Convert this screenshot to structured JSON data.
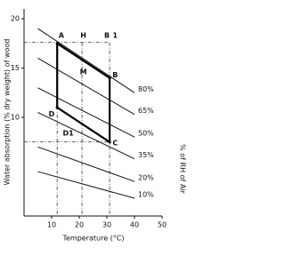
{
  "chart_data": {
    "type": "line",
    "x_label": "Temperature (°C)",
    "y_label": "Water absorption (% dry weight) of wood",
    "y2_label": "% of RH of Air",
    "xlim": [
      0,
      50
    ],
    "xticks": [
      10,
      20,
      30,
      40,
      50
    ],
    "ylim": [
      0,
      21
    ],
    "yticks": [
      10,
      15,
      20
    ],
    "color": "#111111",
    "series": [
      {
        "name": "80%",
        "x": [
          5,
          40
        ],
        "values": [
          19,
          12.5
        ]
      },
      {
        "name": "65%",
        "x": [
          5,
          40
        ],
        "values": [
          16,
          10.3
        ]
      },
      {
        "name": "50%",
        "x": [
          5,
          40
        ],
        "values": [
          13,
          8
        ]
      },
      {
        "name": "35%",
        "x": [
          5,
          40
        ],
        "values": [
          10.5,
          5.8
        ]
      },
      {
        "name": "20%",
        "x": [
          5,
          40
        ],
        "values": [
          7,
          3.5
        ]
      },
      {
        "name": "10%",
        "x": [
          5,
          40
        ],
        "values": [
          4.5,
          1.8
        ]
      }
    ],
    "cycle": {
      "x": [
        12,
        31,
        31,
        12,
        12
      ],
      "values": [
        17.5,
        14,
        7.5,
        11,
        17.5
      ]
    },
    "guides": [
      {
        "x": [
          0,
          31
        ],
        "values": [
          17.6,
          17.6
        ]
      },
      {
        "x": [
          31,
          31
        ],
        "values": [
          17.6,
          0
        ]
      },
      {
        "x": [
          12,
          12
        ],
        "values": [
          17.6,
          0
        ]
      },
      {
        "x": [
          21,
          21
        ],
        "values": [
          17.6,
          0
        ]
      },
      {
        "x": [
          0,
          31
        ],
        "values": [
          7.5,
          7.5
        ]
      }
    ],
    "annotations": [
      {
        "text": "A",
        "x": 13.5,
        "y": 18.3
      },
      {
        "text": "H",
        "x": 21.5,
        "y": 18.3
      },
      {
        "text": "B",
        "x": 30,
        "y": 18.3
      },
      {
        "text": "1",
        "x": 33,
        "y": 18.3
      },
      {
        "text": "M",
        "x": 21.5,
        "y": 14.6
      },
      {
        "text": "B",
        "x": 33,
        "y": 14.3
      },
      {
        "text": "D",
        "x": 10,
        "y": 10.3
      },
      {
        "text": "C",
        "x": 33,
        "y": 7.4
      },
      {
        "text": "D1",
        "x": 16,
        "y": 8.4
      }
    ]
  }
}
